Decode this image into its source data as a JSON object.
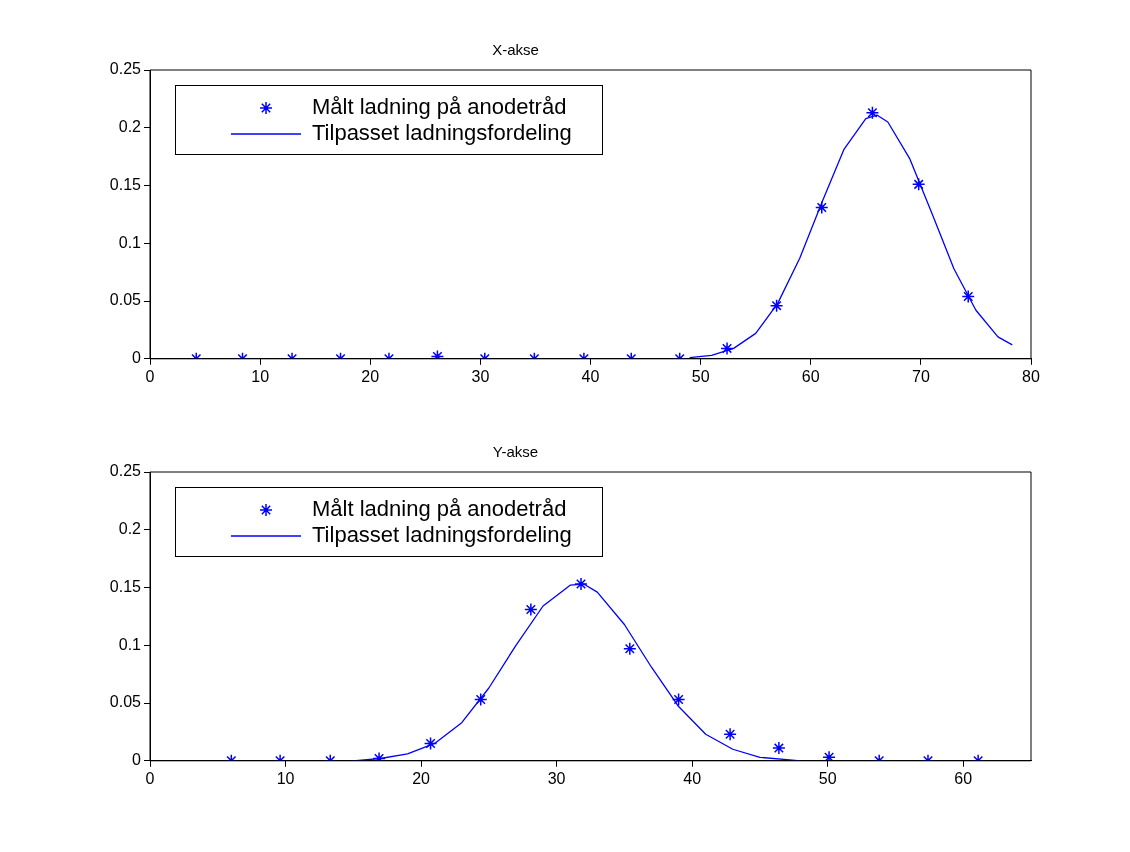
{
  "chart_data": [
    {
      "type": "scatter",
      "title": "X-akse",
      "xlim": [
        0,
        80
      ],
      "xticks": [
        0,
        10,
        20,
        30,
        40,
        50,
        60,
        70,
        80
      ],
      "ylim": [
        0,
        0.25
      ],
      "yticks": [
        0,
        0.05,
        0.1,
        0.15,
        0.2,
        0.25
      ],
      "grid": false,
      "legend": "top left",
      "series": [
        {
          "name": "Målt ladning på anodetråd",
          "marker": "cross",
          "color": "#0000ff",
          "x": [
            4.2,
            8.4,
            12.9,
            17.3,
            21.7,
            26.1,
            30.4,
            34.9,
            39.4,
            43.7,
            48.1,
            52.4,
            56.9,
            61.0,
            65.6,
            69.8,
            74.3
          ],
          "values": [
            0,
            0,
            0,
            0,
            0,
            0.002,
            0,
            0,
            0,
            0,
            0,
            0.009,
            0.046,
            0.131,
            0.213,
            0.151,
            0.054
          ]
        },
        {
          "name": "Tilpasset ladningsfordeling",
          "type": "line",
          "marker": "none",
          "line_style": "solid",
          "color": "#0000ff",
          "x": [
            49,
            51,
            53,
            55,
            57,
            59,
            61,
            63,
            65,
            66,
            67,
            69,
            71,
            73,
            75,
            77,
            78.3
          ],
          "values": [
            0.001,
            0.003,
            0.009,
            0.022,
            0.048,
            0.087,
            0.135,
            0.181,
            0.208,
            0.211,
            0.205,
            0.173,
            0.126,
            0.078,
            0.042,
            0.019,
            0.012
          ]
        }
      ]
    },
    {
      "type": "scatter",
      "title": "Y-akse",
      "xlim": [
        0,
        65
      ],
      "xticks": [
        0,
        10,
        20,
        30,
        40,
        50,
        60
      ],
      "ylim": [
        0,
        0.25
      ],
      "yticks": [
        0,
        0.05,
        0.1,
        0.15,
        0.2,
        0.25
      ],
      "grid": false,
      "legend": "top left",
      "series": [
        {
          "name": "Målt ladning på anodetråd",
          "marker": "cross",
          "color": "#0000ff",
          "x": [
            6.0,
            9.6,
            13.3,
            16.9,
            20.7,
            24.4,
            28.1,
            31.8,
            35.4,
            39.0,
            42.8,
            46.4,
            50.1,
            53.8,
            57.4,
            61.1
          ],
          "values": [
            0,
            0,
            0,
            0.002,
            0.015,
            0.053,
            0.131,
            0.153,
            0.097,
            0.053,
            0.023,
            0.011,
            0.003,
            0,
            0,
            0
          ]
        },
        {
          "name": "Tilpasset ladningsfordeling",
          "type": "line",
          "marker": "none",
          "line_style": "solid",
          "color": "#0000ff",
          "x": [
            15,
            17,
            19,
            21,
            23,
            25,
            27,
            29,
            31,
            32,
            33,
            35,
            37,
            39,
            41,
            43,
            45,
            48
          ],
          "values": [
            0,
            0.002,
            0.006,
            0.015,
            0.033,
            0.063,
            0.1,
            0.134,
            0.152,
            0.153,
            0.146,
            0.118,
            0.081,
            0.047,
            0.023,
            0.01,
            0.003,
            0
          ]
        }
      ]
    }
  ]
}
